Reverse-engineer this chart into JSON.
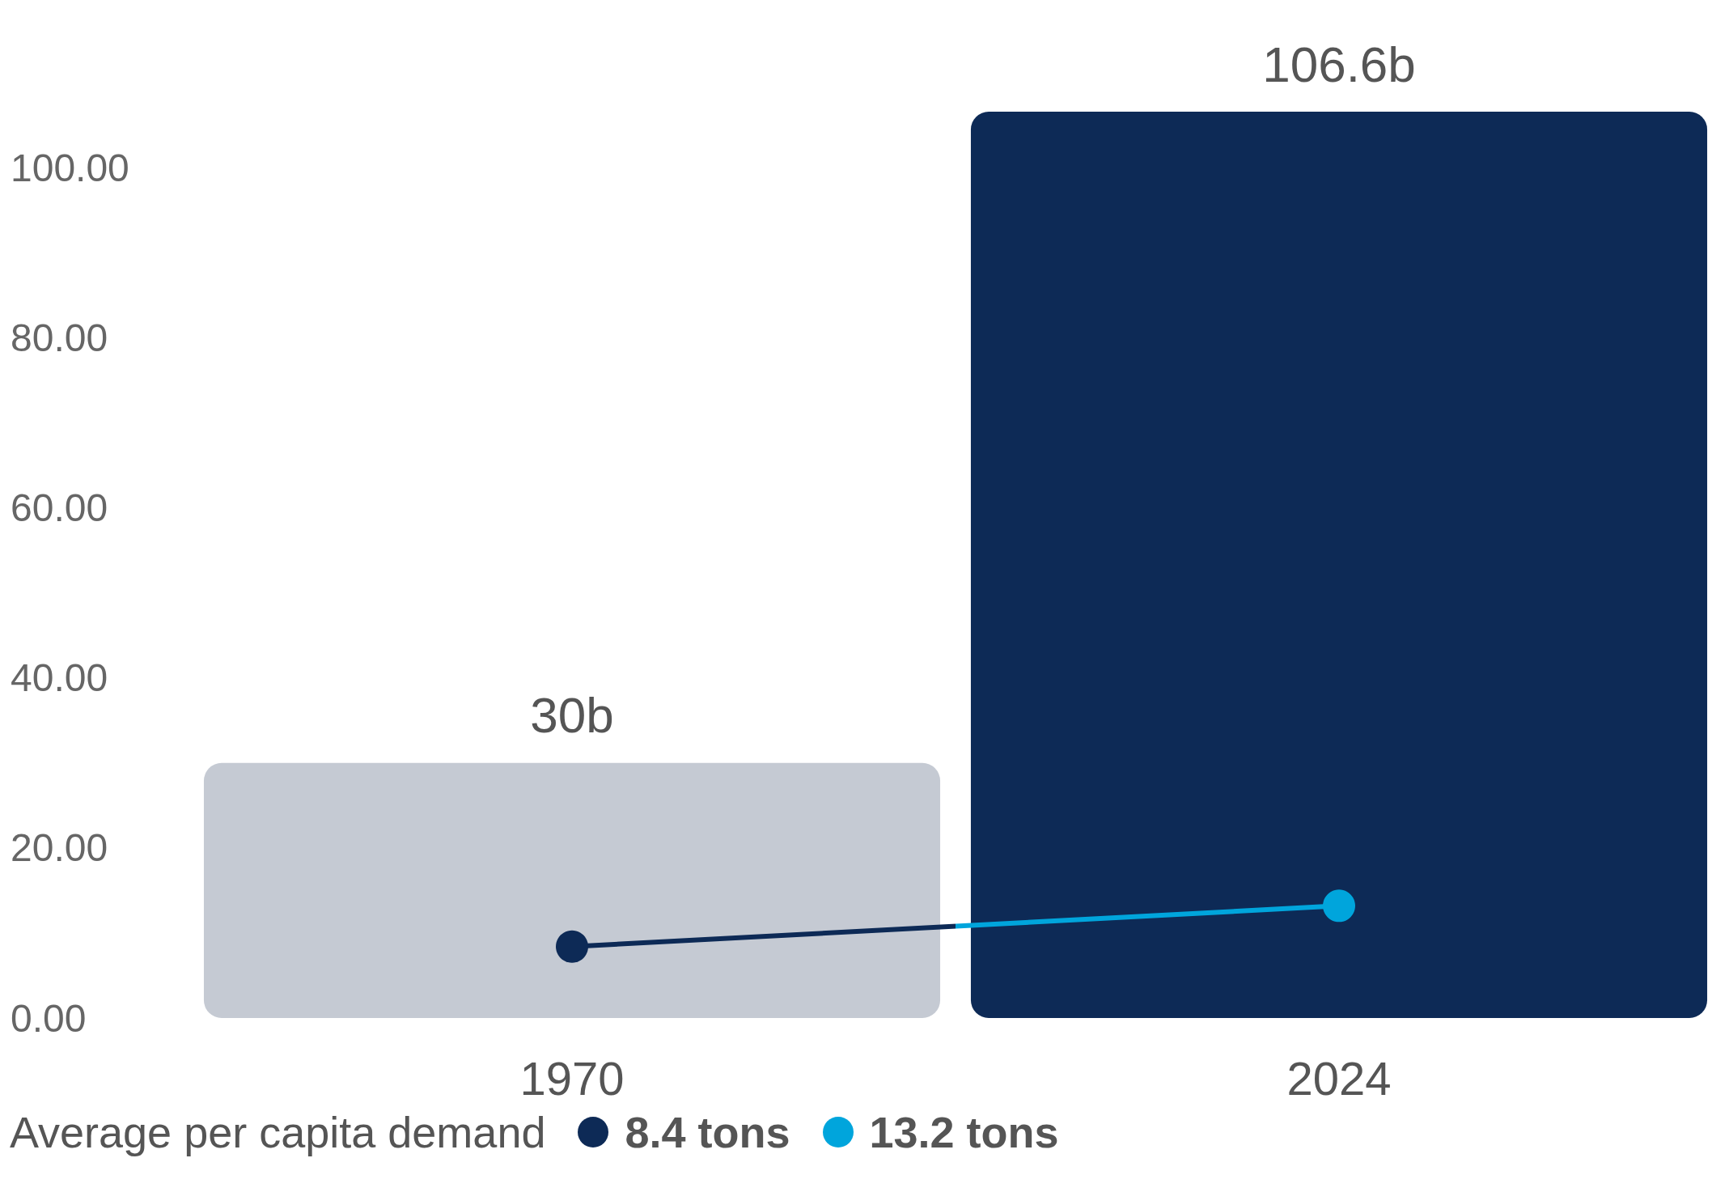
{
  "chart_data": {
    "type": "bar",
    "categories": [
      "1970",
      "2024"
    ],
    "legend_title": "Average per capita demand",
    "series": [
      {
        "colors": [
          "#c5cad3",
          "#0d2a56"
        ],
        "values": [
          30,
          106.6
        ],
        "value_labels": [
          "30b",
          "106.6b"
        ]
      },
      {
        "type": "line",
        "colors": [
          "#0d2a56",
          "#00a5dc"
        ],
        "values": [
          8.4,
          13.2
        ],
        "value_labels": [
          "8.4 tons",
          "13.2 tons"
        ],
        "marker": "circle"
      }
    ],
    "yticks": [
      {
        "value": 0,
        "label": "0.00"
      },
      {
        "value": 20,
        "label": "20.00"
      },
      {
        "value": 40,
        "label": "40.00"
      },
      {
        "value": 60,
        "label": "60.00"
      },
      {
        "value": 80,
        "label": "80.00"
      },
      {
        "value": 100,
        "label": "100.00"
      }
    ],
    "ylim": [
      0,
      106.6
    ],
    "grid": false
  }
}
